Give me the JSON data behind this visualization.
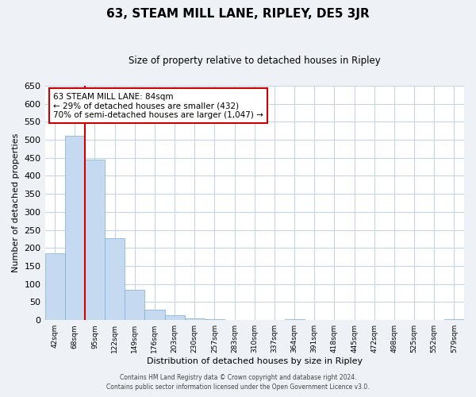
{
  "title": "63, STEAM MILL LANE, RIPLEY, DE5 3JR",
  "subtitle": "Size of property relative to detached houses in Ripley",
  "xlabel": "Distribution of detached houses by size in Ripley",
  "ylabel": "Number of detached properties",
  "bar_labels": [
    "42sqm",
    "68sqm",
    "95sqm",
    "122sqm",
    "149sqm",
    "176sqm",
    "203sqm",
    "230sqm",
    "257sqm",
    "283sqm",
    "310sqm",
    "337sqm",
    "364sqm",
    "391sqm",
    "418sqm",
    "445sqm",
    "472sqm",
    "498sqm",
    "525sqm",
    "552sqm",
    "579sqm"
  ],
  "bar_values": [
    185,
    510,
    445,
    228,
    85,
    28,
    13,
    4,
    2,
    0,
    0,
    0,
    2,
    0,
    0,
    0,
    0,
    0,
    0,
    0,
    2
  ],
  "bar_color": "#c5d9f1",
  "bar_edge_color": "#7bafd4",
  "annotation_text_line1": "63 STEAM MILL LANE: 84sqm",
  "annotation_text_line2": "← 29% of detached houses are smaller (432)",
  "annotation_text_line3": "70% of semi-detached houses are larger (1,047) →",
  "ylim": [
    0,
    650
  ],
  "yticks": [
    0,
    50,
    100,
    150,
    200,
    250,
    300,
    350,
    400,
    450,
    500,
    550,
    600,
    650
  ],
  "footer_line1": "Contains HM Land Registry data © Crown copyright and database right 2024.",
  "footer_line2": "Contains public sector information licensed under the Open Government Licence v3.0.",
  "bg_color": "#eef2f7",
  "plot_bg_color": "#ffffff",
  "grid_color": "#c8d4e4",
  "annotation_box_edge_color": "#cc0000",
  "vline_color": "#cc0000",
  "vline_x": 1.5
}
